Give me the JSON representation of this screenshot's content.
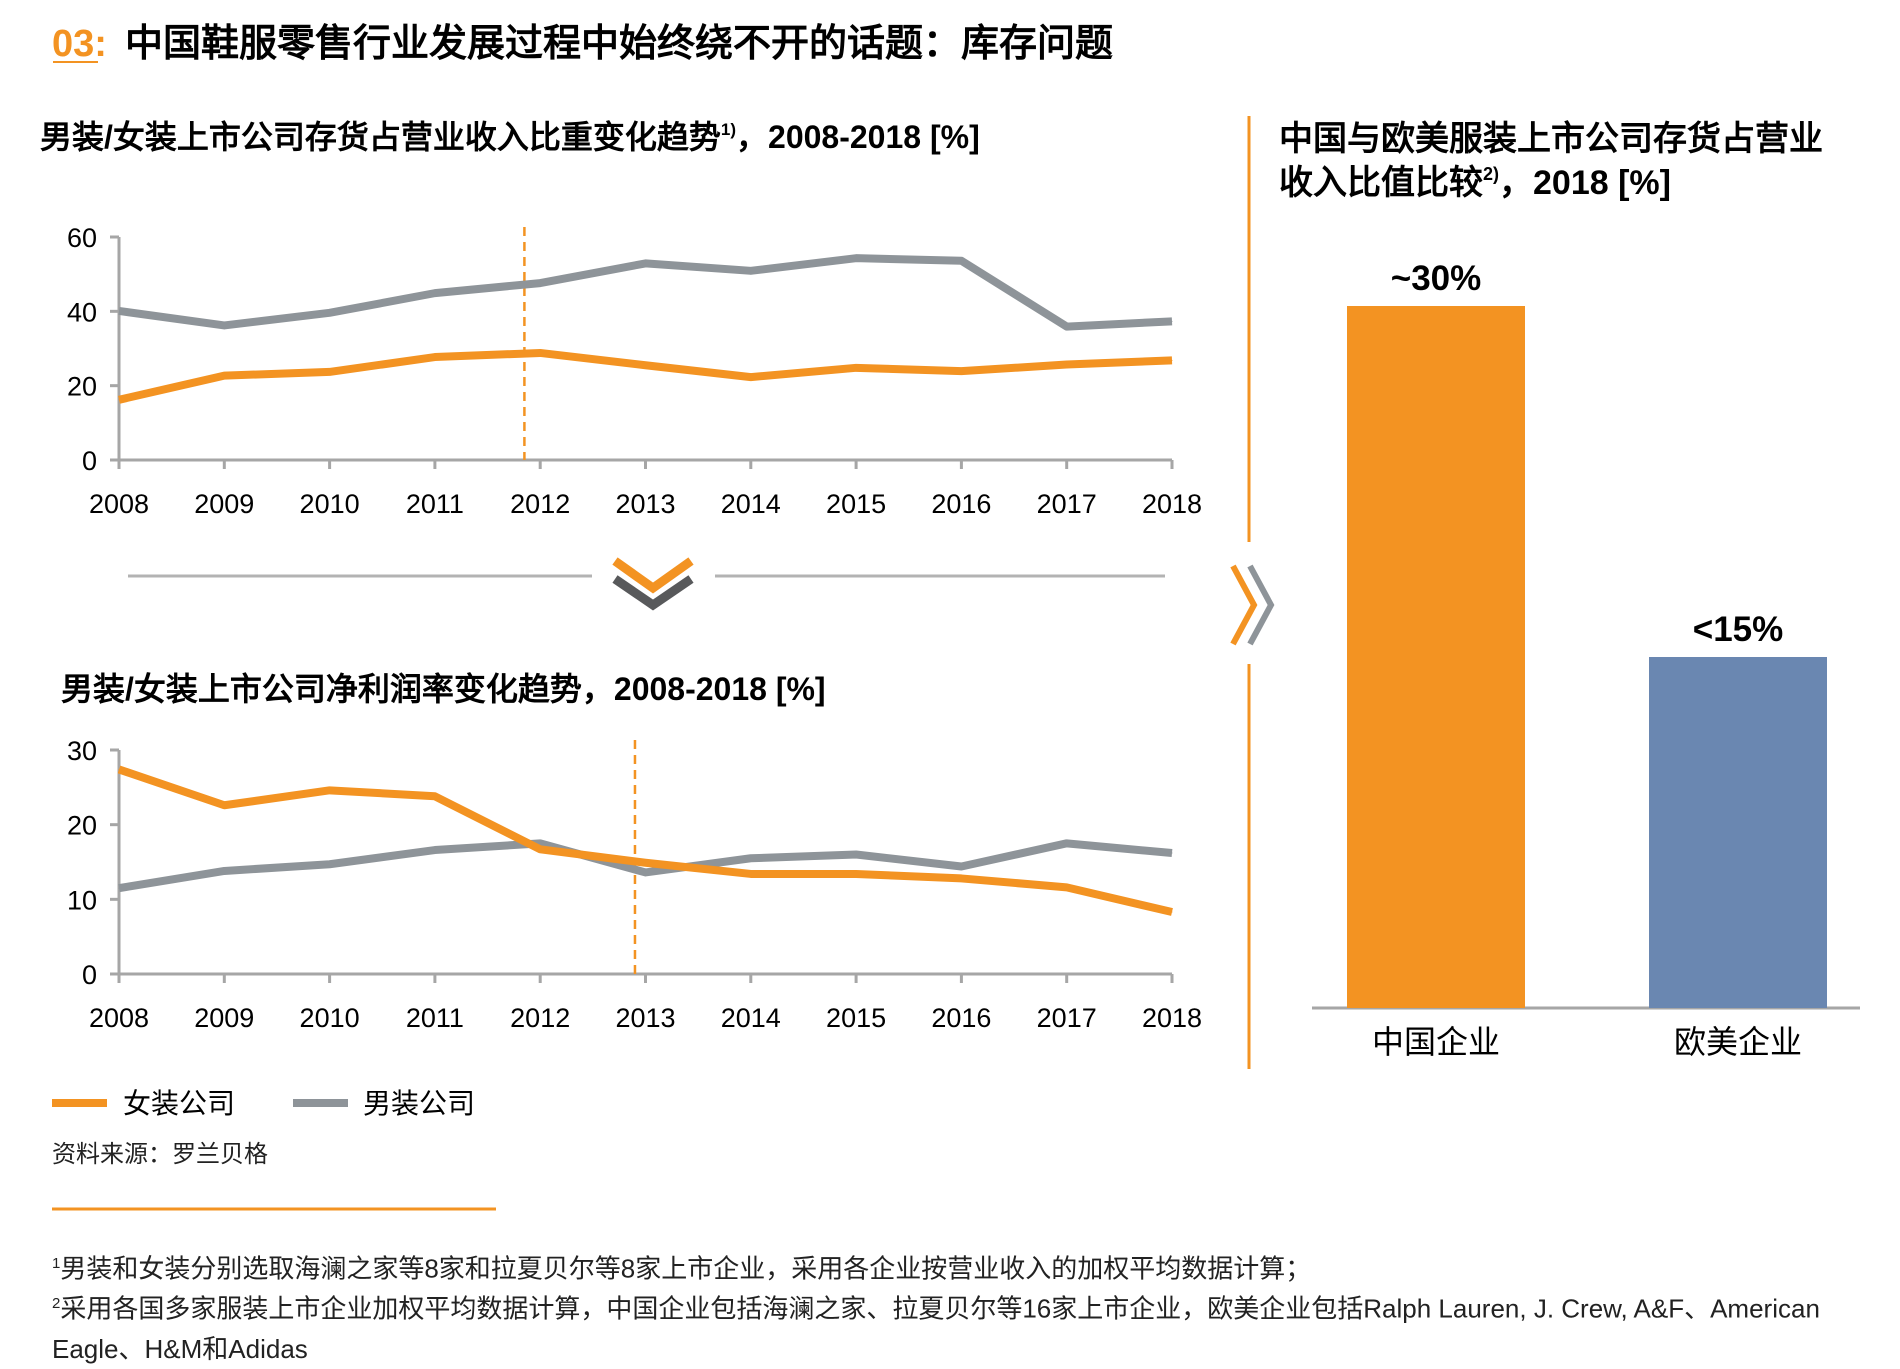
{
  "header": {
    "number": "03:",
    "title": "中国鞋服零售行业发展过程中始终绕不开的话题：库存问题"
  },
  "colors": {
    "orange": "#F39322",
    "gray": "#8E9499",
    "blue": "#6A87B1",
    "accent_line": "#F39322"
  },
  "chart_data": [
    {
      "type": "line",
      "title": "男装/女装上市公司存货占营业收入比重变化趋势",
      "title_sup": "1)",
      "title_suffix": "，2008-2018 [%]",
      "x": [
        "2008",
        "2009",
        "2010",
        "2011",
        "2012",
        "2013",
        "2014",
        "2015",
        "2016",
        "2017",
        "2018"
      ],
      "ylim": [
        0,
        60
      ],
      "yticks": [
        "0",
        "20",
        "40",
        "60"
      ],
      "marker_year": 2011.85,
      "series": [
        {
          "name": "女装公司",
          "color": "#F39322",
          "values": [
            16.2,
            22.7,
            23.7,
            27.7,
            28.8,
            25.5,
            22.3,
            24.8,
            23.9,
            25.7,
            26.8
          ]
        },
        {
          "name": "男装公司",
          "color": "#8E9499",
          "values": [
            40.1,
            36.2,
            39.6,
            44.9,
            47.6,
            52.9,
            50.9,
            54.3,
            53.6,
            35.9,
            37.3
          ]
        }
      ]
    },
    {
      "type": "line",
      "title": "男装/女装上市公司净利润率变化趋势，2008-2018 [%]",
      "x": [
        "2008",
        "2009",
        "2010",
        "2011",
        "2012",
        "2013",
        "2014",
        "2015",
        "2016",
        "2017",
        "2018"
      ],
      "ylim": [
        0,
        30
      ],
      "yticks": [
        "0",
        "10",
        "20",
        "30"
      ],
      "marker_year": 2012.9,
      "series": [
        {
          "name": "女装公司",
          "color": "#F39322",
          "values": [
            27.4,
            22.6,
            24.6,
            23.8,
            16.7,
            14.9,
            13.4,
            13.4,
            12.8,
            11.6,
            8.3
          ]
        },
        {
          "name": "男装公司",
          "color": "#8E9499",
          "values": [
            11.5,
            13.8,
            14.7,
            16.6,
            17.5,
            13.6,
            15.5,
            16.0,
            14.4,
            17.5,
            16.2
          ]
        }
      ]
    },
    {
      "type": "bar",
      "title_line1": "中国与欧美服装上市公司存货占营业",
      "title_line2": "收入比值比较",
      "title_sup": "2)",
      "title_suffix": "，2018 [%]",
      "categories": [
        "中国企业",
        "欧美企业"
      ],
      "values": [
        30,
        15
      ],
      "labels": [
        "~30%",
        "<15%"
      ],
      "colors": [
        "#F39322",
        "#6A87B1"
      ]
    }
  ],
  "legend": [
    {
      "label": "女装公司",
      "color": "#F39322"
    },
    {
      "label": "男装公司",
      "color": "#8E9499"
    }
  ],
  "source": "资料来源：罗兰贝格",
  "footnotes": {
    "n1_mark": "1",
    "n1": "男装和女装分别选取海澜之家等8家和拉夏贝尔等8家上市企业，采用各企业按营业收入的加权平均数据计算；",
    "n2_mark": "2",
    "n2": "采用各国多家服装上市企业加权平均数据计算，中国企业包括海澜之家、拉夏贝尔等16家上市企业，欧美企业包括Ralph Lauren, J. Crew, A&F、American Eagle、H&M和Adidas"
  }
}
